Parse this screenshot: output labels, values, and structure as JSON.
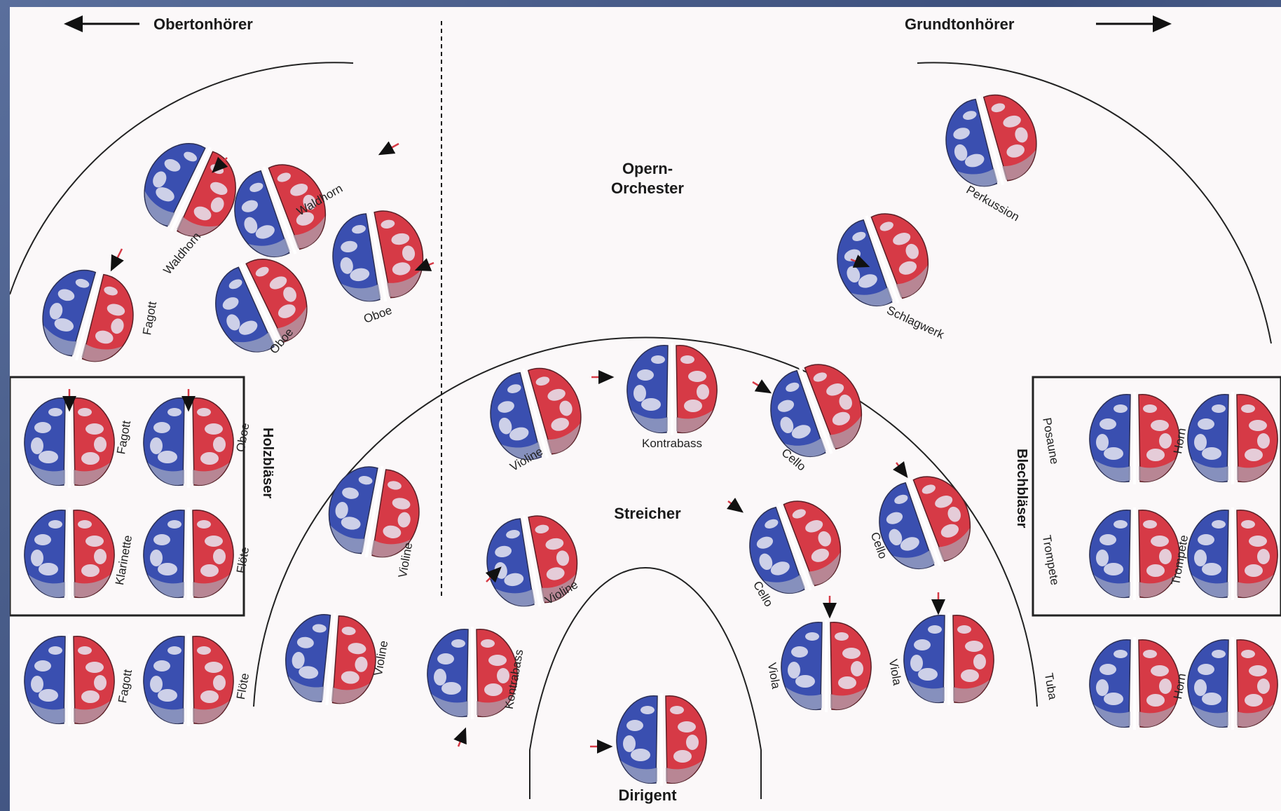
{
  "header": {
    "left_label": "Obertonhörer",
    "right_label": "Grundtonhörer",
    "left_arrow_icon": "arrow-left-icon",
    "right_arrow_icon": "arrow-right-icon"
  },
  "sections": {
    "opera_orchestra": [
      "Opern-",
      "Orchester"
    ],
    "strings": "Streicher",
    "conductor": "Dirigent",
    "woodwinds": "Holzbläser",
    "brass": "Blechbläser"
  },
  "brains": [
    {
      "label": "Waldhorn"
    },
    {
      "label": "Waldhorn"
    },
    {
      "label": "Fagott"
    },
    {
      "label": "Oboe"
    },
    {
      "label": "Oboe"
    },
    {
      "label": "Fagott"
    },
    {
      "label": "Oboe"
    },
    {
      "label": "Klarinette"
    },
    {
      "label": "Flöte"
    },
    {
      "label": "Fagott"
    },
    {
      "label": "Flöte"
    },
    {
      "label": "Perkussion"
    },
    {
      "label": "Schlagwerk"
    },
    {
      "label": "Violine"
    },
    {
      "label": "Kontrabass"
    },
    {
      "label": "Cello"
    },
    {
      "label": "Violine"
    },
    {
      "label": "Cello"
    },
    {
      "label": "Cello"
    },
    {
      "label": "Violine"
    },
    {
      "label": "Violine"
    },
    {
      "label": "Kontrabass"
    },
    {
      "label": "Viola"
    },
    {
      "label": "Viola"
    },
    {
      "label": "Posaune"
    },
    {
      "label": "Horn"
    },
    {
      "label": "Trompete"
    },
    {
      "label": "Trompete"
    },
    {
      "label": "Tuba"
    },
    {
      "label": "Horn"
    },
    {
      "label": ""
    }
  ],
  "colors": {
    "blue": "#3a4fb0",
    "red": "#d63a46",
    "background": "#fbf8f9"
  }
}
